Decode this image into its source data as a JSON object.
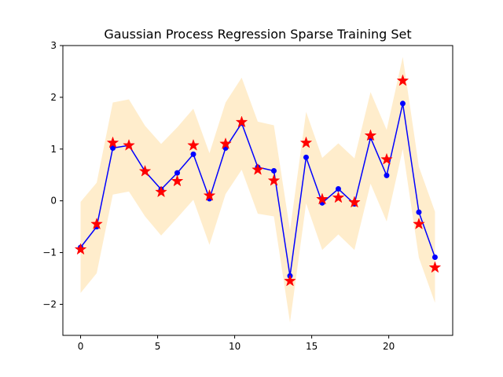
{
  "chart_data": {
    "type": "line",
    "title": "Gaussian Process Regression Sparse Training Set",
    "xlim": [
      -1.15,
      24.15
    ],
    "ylim": [
      -2.6,
      3.0
    ],
    "xticks": [
      0,
      5,
      10,
      15,
      20
    ],
    "yticks": [
      -2,
      -1,
      0,
      1,
      2,
      3
    ],
    "x": [
      0,
      1.045,
      2.09,
      3.136,
      4.182,
      5.227,
      6.273,
      7.318,
      8.364,
      9.409,
      10.455,
      11.5,
      12.545,
      13.591,
      14.636,
      15.682,
      16.727,
      17.773,
      18.818,
      19.864,
      20.909,
      21.955,
      23.0
    ],
    "series": [
      {
        "type": "line",
        "color": "#0000ff",
        "marker": "circle",
        "values": [
          -0.9,
          -0.5,
          1.02,
          1.07,
          0.57,
          0.22,
          0.54,
          0.9,
          0.04,
          1.02,
          1.5,
          0.65,
          0.58,
          -1.45,
          0.84,
          -0.04,
          0.23,
          -0.06,
          1.22,
          0.49,
          1.88,
          -0.22,
          -1.09
        ]
      },
      {
        "type": "scatter",
        "color": "#ff0000",
        "marker": "star",
        "values": [
          -0.94,
          -0.45,
          1.12,
          1.07,
          0.57,
          0.17,
          0.38,
          1.07,
          0.1,
          1.1,
          1.52,
          0.6,
          0.39,
          -1.55,
          1.12,
          0.03,
          0.06,
          -0.03,
          1.26,
          0.8,
          2.32,
          -0.45,
          -1.29
        ]
      }
    ],
    "band": {
      "color": "#ffa500",
      "opacity": 0.2,
      "lower": [
        -1.78,
        -1.4,
        0.12,
        0.18,
        -0.3,
        -0.67,
        -0.33,
        0.02,
        -0.85,
        0.13,
        0.6,
        -0.25,
        -0.3,
        -2.35,
        -0.05,
        -0.95,
        -0.65,
        -0.95,
        0.33,
        -0.4,
        1.0,
        -1.1,
        -1.97
      ],
      "upper": [
        -0.02,
        0.35,
        1.9,
        1.96,
        1.45,
        1.1,
        1.42,
        1.78,
        0.92,
        1.9,
        2.38,
        1.53,
        1.46,
        -0.57,
        1.72,
        0.83,
        1.11,
        0.82,
        2.1,
        1.37,
        2.78,
        0.66,
        -0.21
      ]
    }
  }
}
